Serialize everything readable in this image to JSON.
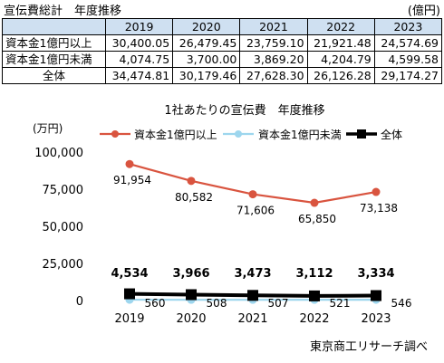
{
  "header": {
    "title": "宣伝費総計　年度推移",
    "unit": "(億円)"
  },
  "table": {
    "years": [
      "2019",
      "2020",
      "2021",
      "2022",
      "2023"
    ],
    "rows": [
      {
        "label": "資本金1億円以上",
        "values": [
          "30,400.05",
          "26,479.45",
          "23,759.10",
          "21,921.48",
          "24,574.69"
        ]
      },
      {
        "label": "資本金1億円未満",
        "values": [
          "4,074.75",
          "3,700.00",
          "3,869.20",
          "4,204.79",
          "4,599.58"
        ]
      },
      {
        "label": "全体",
        "values": [
          "34,474.81",
          "30,179.46",
          "27,628.30",
          "26,126.28",
          "29,174.27"
        ]
      }
    ]
  },
  "chart_data": {
    "type": "line",
    "title": "1社あたりの宣伝費　年度推移",
    "ylabel": "(万円)",
    "xlabel": "",
    "x": [
      "2019",
      "2020",
      "2021",
      "2022",
      "2023"
    ],
    "ylim": [
      0,
      100000
    ],
    "yticks": [
      0,
      25000,
      50000,
      75000,
      100000
    ],
    "ytick_labels": [
      "0",
      "25,000",
      "50,000",
      "75,000",
      "100,000"
    ],
    "grid": false,
    "legend_position": "top",
    "series": [
      {
        "name": "資本金1億円以上",
        "color": "#d9543f",
        "marker": "circle",
        "values": [
          91954,
          80582,
          71606,
          65850,
          73138
        ],
        "labels": [
          "91,954",
          "80,582",
          "71,606",
          "65,850",
          "73,138"
        ]
      },
      {
        "name": "資本金1億円未満",
        "color": "#9dd6ee",
        "marker": "circle",
        "values": [
          560,
          508,
          507,
          521,
          546
        ],
        "labels": [
          "560",
          "508",
          "507",
          "521",
          "546"
        ]
      },
      {
        "name": "全体",
        "color": "#000000",
        "marker": "square",
        "values": [
          4534,
          3966,
          3473,
          3112,
          3334
        ],
        "labels": [
          "4,534",
          "3,966",
          "3,473",
          "3,112",
          "3,334"
        ]
      }
    ]
  },
  "footer": {
    "source": "東京商工リサーチ調べ"
  }
}
